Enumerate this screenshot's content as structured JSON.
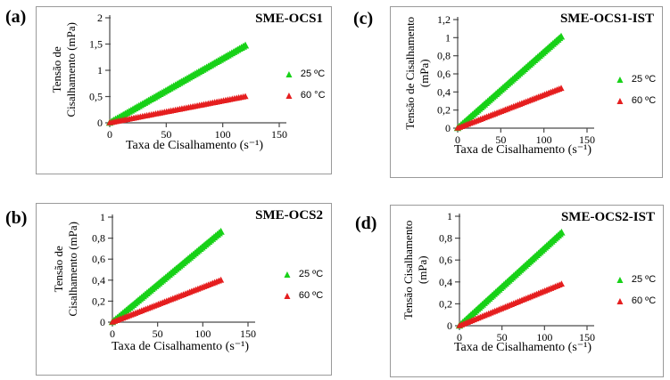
{
  "figure": {
    "panels": [
      {
        "letter": "(a)",
        "title": "SME-OCS1",
        "ylabel_line1": "Tensão de",
        "ylabel_line2": "Cisalhamento (mPa)",
        "xlabel": "Taxa de Cisalhamento (s⁻¹)",
        "legend": [
          {
            "label": "25 ºC"
          },
          {
            "label": "60 °C"
          }
        ]
      },
      {
        "letter": "(c)",
        "title": "SME-OCS1-IST",
        "ylabel_line1": "Tensão de Cisalhamento",
        "ylabel_line2": "(mPa)",
        "xlabel": "Taxa de Cisalhamento (s⁻¹)",
        "legend": [
          {
            "label": "25 ºC"
          },
          {
            "label": "60 ºC"
          }
        ]
      },
      {
        "letter": "(b)",
        "title": "SME-OCS2",
        "ylabel_line1": "Tensão de",
        "ylabel_line2": "Cisalhamento (mPa)",
        "xlabel": "Taxa de Cisalhamento (s⁻¹)",
        "legend": [
          {
            "label": "25 ºC"
          },
          {
            "label": "60 ºC"
          }
        ]
      },
      {
        "letter": "(d)",
        "title": "SME-OCS2-IST",
        "ylabel_line1": "Tensão Cisalhamento",
        "ylabel_line2": "(mPa)",
        "xlabel": "Taxa de Cisalhamento (s⁻¹)",
        "legend": [
          {
            "label": "25 ºC"
          },
          {
            "label": "60 ºC"
          }
        ]
      }
    ],
    "colors": {
      "series_25c": "#17d117",
      "series_60c": "#e51e1f",
      "axis": "#4a4a4a",
      "panel_border": "#9a9a9a"
    }
  },
  "chart_data": [
    {
      "type": "scatter",
      "panel": "a",
      "title": "SME-OCS1",
      "xlabel": "Taxa de Cisalhamento (s⁻¹)",
      "ylabel": "Tensão de Cisalhamento (mPa)",
      "xlim": [
        0,
        150
      ],
      "ylim": [
        0,
        2
      ],
      "xticks": [
        0,
        50,
        100,
        150
      ],
      "xtick_labels": [
        "0",
        "50",
        "100",
        "150"
      ],
      "yticks": [
        0,
        0.5,
        1,
        1.5,
        2
      ],
      "ytick_labels": [
        "0",
        "0,5",
        "1",
        "1,5",
        "2"
      ],
      "grid": false,
      "legend_position": "right",
      "marker": "triangle",
      "series": [
        {
          "name": "25 ºC",
          "color": "#17d117",
          "x": [
            0,
            120
          ],
          "y": [
            0,
            1.47
          ]
        },
        {
          "name": "60 °C",
          "color": "#e51e1f",
          "x": [
            0,
            120
          ],
          "y": [
            0,
            0.5
          ]
        }
      ]
    },
    {
      "type": "scatter",
      "panel": "c",
      "title": "SME-OCS1-IST",
      "xlabel": "Taxa de Cisalhamento (s⁻¹)",
      "ylabel": "Tensão de Cisalhamento (mPa)",
      "xlim": [
        0,
        150
      ],
      "ylim": [
        0,
        1.2
      ],
      "xticks": [
        0,
        50,
        100,
        150
      ],
      "xtick_labels": [
        "0",
        "50",
        "100",
        "150"
      ],
      "yticks": [
        0,
        0.2,
        0.4,
        0.6,
        0.8,
        1,
        1.2
      ],
      "ytick_labels": [
        "0",
        "0,2",
        "0,4",
        "0,6",
        "0,8",
        "1",
        "1,2"
      ],
      "grid": false,
      "legend_position": "right",
      "marker": "triangle",
      "series": [
        {
          "name": "25 ºC",
          "color": "#17d117",
          "x": [
            0,
            120
          ],
          "y": [
            0,
            1.01
          ]
        },
        {
          "name": "60 ºC",
          "color": "#e51e1f",
          "x": [
            0,
            120
          ],
          "y": [
            0,
            0.44
          ]
        }
      ]
    },
    {
      "type": "scatter",
      "panel": "b",
      "title": "SME-OCS2",
      "xlabel": "Taxa de Cisalhamento (s⁻¹)",
      "ylabel": "Tensão de Cisalhamento (mPa)",
      "xlim": [
        0,
        150
      ],
      "ylim": [
        0,
        1
      ],
      "xticks": [
        0,
        50,
        100,
        150
      ],
      "xtick_labels": [
        "0",
        "50",
        "100",
        "150"
      ],
      "yticks": [
        0,
        0.2,
        0.4,
        0.6,
        0.8,
        1
      ],
      "ytick_labels": [
        "0",
        "0,2",
        "0,4",
        "0,6",
        "0,8",
        "1"
      ],
      "grid": false,
      "legend_position": "right",
      "marker": "triangle",
      "series": [
        {
          "name": "25 ºC",
          "color": "#17d117",
          "x": [
            0,
            120
          ],
          "y": [
            0,
            0.86
          ]
        },
        {
          "name": "60 ºC",
          "color": "#e51e1f",
          "x": [
            0,
            120
          ],
          "y": [
            0,
            0.4
          ]
        }
      ]
    },
    {
      "type": "scatter",
      "panel": "d",
      "title": "SME-OCS2-IST",
      "xlabel": "Taxa de Cisalhamento (s⁻¹)",
      "ylabel": "Tensão Cisalhamento (mPa)",
      "xlim": [
        0,
        150
      ],
      "ylim": [
        0,
        1
      ],
      "xticks": [
        0,
        50,
        100,
        150
      ],
      "xtick_labels": [
        "0",
        "50",
        "100",
        "150"
      ],
      "yticks": [
        0,
        0.2,
        0.4,
        0.6,
        0.8,
        1
      ],
      "ytick_labels": [
        "0",
        "0,2",
        "0,4",
        "0,6",
        "0,8",
        "1"
      ],
      "grid": false,
      "legend_position": "right",
      "marker": "triangle",
      "series": [
        {
          "name": "25 ºC",
          "color": "#17d117",
          "x": [
            0,
            120
          ],
          "y": [
            0,
            0.85
          ]
        },
        {
          "name": "60 ºC",
          "color": "#e51e1f",
          "x": [
            0,
            120
          ],
          "y": [
            0,
            0.38
          ]
        }
      ]
    }
  ]
}
